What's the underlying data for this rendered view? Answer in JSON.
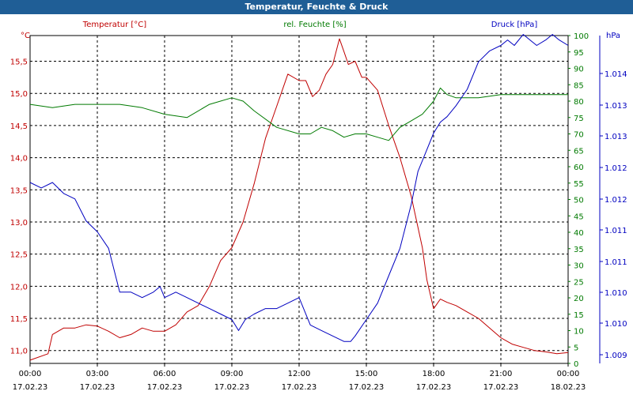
{
  "window": {
    "title": "Temperatur, Feuchte & Druck"
  },
  "colors": {
    "title_bar": "#1f5e96",
    "temperature": "#c00000",
    "humidity": "#007a00",
    "pressure": "#0000c0"
  },
  "chart_data": {
    "type": "line",
    "title": "Temperatur, Feuchte & Druck",
    "grid": true,
    "x_ticks": [
      {
        "time": "00:00",
        "date": "17.02.23"
      },
      {
        "time": "03:00",
        "date": "17.02.23"
      },
      {
        "time": "06:00",
        "date": "17.02.23"
      },
      {
        "time": "09:00",
        "date": "17.02.23"
      },
      {
        "time": "12:00",
        "date": "17.02.23"
      },
      {
        "time": "15:00",
        "date": "17.02.23"
      },
      {
        "time": "18:00",
        "date": "17.02.23"
      },
      {
        "time": "21:00",
        "date": "17.02.23"
      },
      {
        "time": "00:00",
        "date": "18.02.23"
      }
    ],
    "x_range_hours": [
      0,
      24
    ],
    "axes": {
      "temperature": {
        "label": "Temperatur [°C]",
        "unit": "°C",
        "ylim": [
          10.8,
          15.9
        ],
        "ticks": [
          "11,0",
          "11,5",
          "12,0",
          "12,5",
          "13,0",
          "13,5",
          "14,0",
          "14,5",
          "15,0",
          "15,5"
        ]
      },
      "humidity": {
        "label": "rel. Feuchte [%]",
        "unit": "%",
        "ylim": [
          0,
          100
        ],
        "ticks": [
          "0",
          "5",
          "10",
          "15",
          "20",
          "25",
          "30",
          "35",
          "40",
          "45",
          "50",
          "55",
          "60",
          "65",
          "70",
          "75",
          "80",
          "85",
          "90",
          "95",
          "100"
        ]
      },
      "pressure": {
        "label": "Druck [hPa]",
        "unit": "hPa",
        "ylim": [
          1.0088,
          1.01478
        ],
        "ticks": [
          "1.009",
          "1.010",
          "1.010",
          "1.011",
          "1.011",
          "1.012",
          "1.012",
          "1.013",
          "1.013",
          "1.014"
        ]
      }
    },
    "series": [
      {
        "name": "Temperatur [°C]",
        "axis": "temperature",
        "x": [
          0,
          0.8,
          1,
          1.5,
          2,
          2.5,
          3,
          3.5,
          4,
          4.5,
          5,
          5.5,
          6,
          6.5,
          7,
          7.5,
          8,
          8.5,
          9,
          9.5,
          10,
          10.5,
          11,
          11.5,
          12,
          12.3,
          12.6,
          12.9,
          13.2,
          13.5,
          13.8,
          14,
          14.2,
          14.5,
          14.8,
          15,
          15.5,
          16,
          16.5,
          17,
          17.5,
          17.7,
          18,
          18.3,
          18.6,
          19,
          19.5,
          20,
          20.5,
          21,
          21.5,
          22,
          22.5,
          23,
          23.5,
          24
        ],
        "y": [
          10.85,
          10.95,
          11.25,
          11.35,
          11.35,
          11.4,
          11.38,
          11.3,
          11.2,
          11.25,
          11.35,
          11.3,
          11.3,
          11.4,
          11.6,
          11.7,
          12.0,
          12.4,
          12.6,
          13.0,
          13.6,
          14.3,
          14.8,
          15.3,
          15.2,
          15.2,
          14.95,
          15.05,
          15.3,
          15.45,
          15.85,
          15.65,
          15.45,
          15.5,
          15.25,
          15.25,
          15.05,
          14.5,
          14.0,
          13.4,
          12.6,
          12.1,
          11.65,
          11.8,
          11.75,
          11.7,
          11.6,
          11.5,
          11.35,
          11.2,
          11.1,
          11.05,
          11.0,
          10.98,
          10.95,
          10.97
        ]
      },
      {
        "name": "rel. Feuchte [%]",
        "axis": "humidity",
        "x": [
          0,
          1,
          2,
          3,
          4,
          5,
          6,
          7,
          8,
          9,
          9.5,
          10,
          11,
          12,
          12.5,
          13,
          13.5,
          14,
          14.5,
          15,
          15.5,
          16,
          16.5,
          17,
          17.5,
          18,
          18.3,
          18.6,
          19,
          19.5,
          20,
          21,
          22,
          23,
          24
        ],
        "y": [
          79,
          78,
          79,
          79,
          79,
          78,
          76,
          75,
          79,
          81,
          80,
          77,
          72,
          70,
          70,
          72,
          71,
          69,
          70,
          70,
          69,
          68,
          72,
          74,
          76,
          80,
          84,
          82,
          81,
          81,
          81,
          82,
          82,
          82,
          82
        ]
      },
      {
        "name": "Druck [hPa]",
        "axis": "pressure",
        "x": [
          0,
          0.5,
          1,
          1.5,
          2,
          2.5,
          3,
          3.5,
          4,
          4.5,
          5,
          5.5,
          5.8,
          6,
          6.5,
          7,
          7.5,
          8,
          8.5,
          9,
          9.3,
          9.6,
          10,
          10.5,
          11,
          11.5,
          12,
          12.5,
          13,
          13.5,
          14,
          14.3,
          14.5,
          15,
          15.5,
          16,
          16.5,
          17,
          17.3,
          17.6,
          18,
          18.3,
          18.6,
          19,
          19.5,
          20,
          20.5,
          21,
          21.3,
          21.6,
          22,
          22.3,
          22.6,
          23,
          23.3,
          23.6,
          24
        ],
        "y": [
          1.0121,
          1.012,
          1.0121,
          1.0119,
          1.0118,
          1.0114,
          1.0112,
          1.0109,
          1.0101,
          1.0101,
          1.01,
          1.0101,
          1.0102,
          1.01,
          1.0101,
          1.01,
          1.0099,
          1.0098,
          1.0097,
          1.0096,
          1.0094,
          1.0096,
          1.0097,
          1.0098,
          1.0098,
          1.0099,
          1.01,
          1.0095,
          1.0094,
          1.0093,
          1.0092,
          1.0092,
          1.0093,
          1.0096,
          1.0099,
          1.0104,
          1.0109,
          1.0117,
          1.0123,
          1.0126,
          1.013,
          1.0132,
          1.0133,
          1.0135,
          1.0138,
          1.0143,
          1.0145,
          1.0146,
          1.0147,
          1.0146,
          1.0148,
          1.0147,
          1.0146,
          1.0147,
          1.0148,
          1.0147,
          1.0146
        ]
      }
    ]
  }
}
